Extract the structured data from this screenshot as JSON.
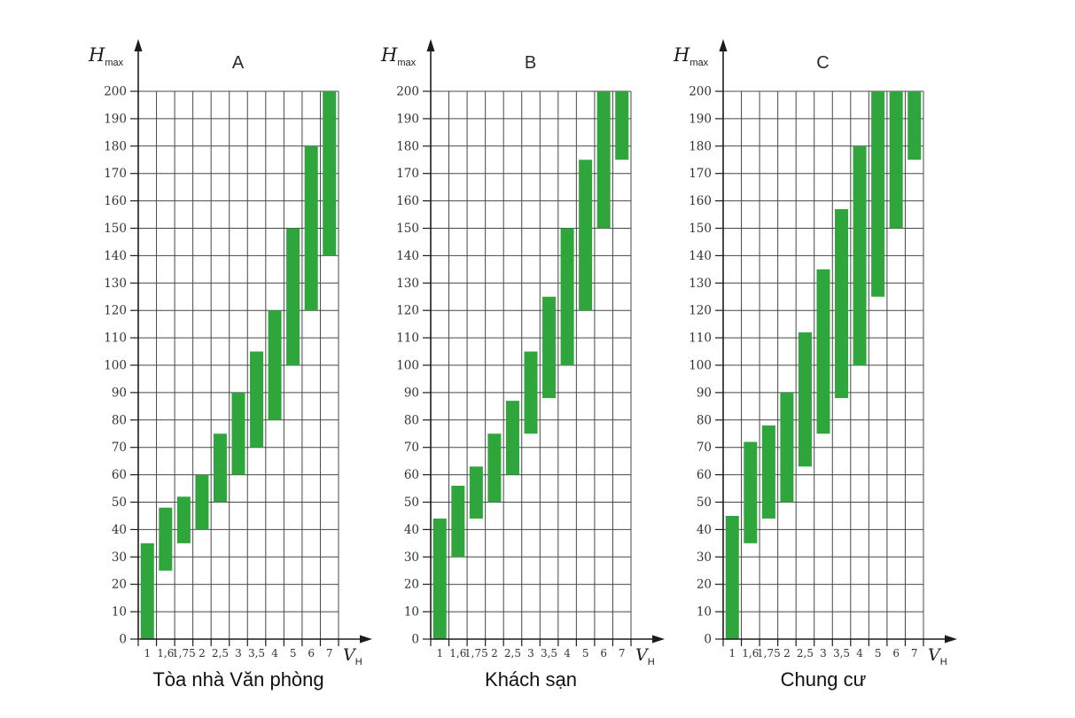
{
  "page": {
    "background": "#ffffff"
  },
  "axis": {
    "y_title_main": "H",
    "y_title_sub": "max",
    "x_title_main": "V",
    "x_title_sub": "H"
  },
  "style": {
    "bar_color": "#2fa63c",
    "grid_color": "#474747",
    "axis_color": "#1c1c1c",
    "tick_text_color": "#333333"
  },
  "chart_data": [
    {
      "type": "bar",
      "subtype": "floating-range-bars",
      "title": "A",
      "caption": "Tòa nhà Văn phòng",
      "ylabel": "Hmax",
      "xlabel": "VH",
      "ylim": [
        0,
        200
      ],
      "ytick_step": 10,
      "grid": true,
      "legend": "none",
      "categories": [
        "1",
        "1,6",
        "1,75",
        "2",
        "2,5",
        "3",
        "3,5",
        "4",
        "5",
        "6",
        "7"
      ],
      "ranges": [
        [
          0,
          35
        ],
        [
          25,
          48
        ],
        [
          35,
          52
        ],
        [
          40,
          60
        ],
        [
          50,
          75
        ],
        [
          60,
          90
        ],
        [
          70,
          105
        ],
        [
          80,
          120
        ],
        [
          100,
          150
        ],
        [
          120,
          180
        ],
        [
          140,
          200
        ]
      ]
    },
    {
      "type": "bar",
      "subtype": "floating-range-bars",
      "title": "B",
      "caption": "Khách sạn",
      "ylabel": "Hmax",
      "xlabel": "VH",
      "ylim": [
        0,
        200
      ],
      "ytick_step": 10,
      "grid": true,
      "legend": "none",
      "categories": [
        "1",
        "1,6",
        "1,75",
        "2",
        "2,5",
        "3",
        "3,5",
        "4",
        "5",
        "6",
        "7"
      ],
      "ranges": [
        [
          0,
          44
        ],
        [
          30,
          56
        ],
        [
          44,
          63
        ],
        [
          50,
          75
        ],
        [
          60,
          87
        ],
        [
          75,
          105
        ],
        [
          88,
          125
        ],
        [
          100,
          150
        ],
        [
          120,
          175
        ],
        [
          150,
          200
        ],
        [
          175,
          200
        ]
      ]
    },
    {
      "type": "bar",
      "subtype": "floating-range-bars",
      "title": "C",
      "caption": "Chung cư",
      "ylabel": "Hmax",
      "xlabel": "VH",
      "ylim": [
        0,
        200
      ],
      "ytick_step": 10,
      "grid": true,
      "legend": "none",
      "categories": [
        "1",
        "1,6",
        "1,75",
        "2",
        "2,5",
        "3",
        "3,5",
        "4",
        "5",
        "6",
        "7"
      ],
      "ranges": [
        [
          0,
          45
        ],
        [
          35,
          72
        ],
        [
          44,
          78
        ],
        [
          50,
          90
        ],
        [
          63,
          112
        ],
        [
          75,
          135
        ],
        [
          88,
          157
        ],
        [
          100,
          180
        ],
        [
          125,
          200
        ],
        [
          150,
          200
        ],
        [
          175,
          200
        ]
      ]
    }
  ]
}
